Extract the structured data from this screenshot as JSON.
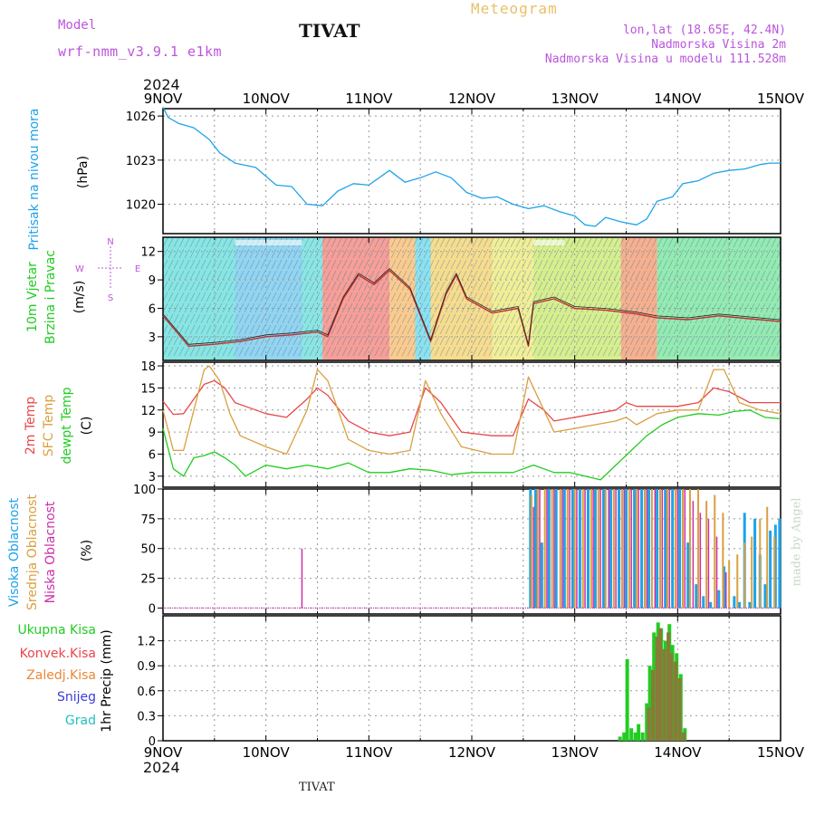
{
  "header": {
    "model_label": "Model",
    "model_name": "wrf-nmm_v3.9.1  e1km",
    "station": "TIVAT",
    "meteogram_label": "Meteogram",
    "lonlat": "lon,lat (18.65E, 42.4N)",
    "elevation": "Nadmorska Visina 2m",
    "model_elevation": "Nadmorska Visina u modelu 111.528m",
    "year_top": "2024",
    "year_bottom": "2024",
    "footer_station": "TIVAT",
    "watermark": "made by Angel"
  },
  "colors": {
    "pressure": "#1fa3e8",
    "temp2m": "#e8474a",
    "sfc_temp": "#d9a040",
    "dewpt": "#22cc22",
    "cloud_high": "#1fa3e8",
    "cloud_mid": "#d9a040",
    "cloud_low": "#cc2fa8",
    "precip_total": "#22cc22",
    "precip_conv": "#e8474a",
    "precip_frozen": "#e8883a",
    "snow": "#3c3cd8",
    "hail": "#22c0c0",
    "wind_label": "#22cc22",
    "wind_icon": "#bb55dd"
  },
  "chart_data": [
    {
      "panel": "pressure",
      "type": "line",
      "ylabel_parts": [
        "Pritisak na nivou mora",
        "(hPa)"
      ],
      "x_days": [
        "9NOV",
        "10NOV",
        "11NOV",
        "12NOV",
        "13NOV",
        "14NOV",
        "15NOV"
      ],
      "ylim": [
        1018,
        1026.5
      ],
      "yticks": [
        "1020",
        "1023",
        "1026"
      ],
      "x": [
        0,
        0.05,
        0.15,
        0.3,
        0.45,
        0.55,
        0.7,
        0.9,
        1.1,
        1.25,
        1.4,
        1.55,
        1.7,
        1.85,
        2.0,
        2.2,
        2.35,
        2.5,
        2.65,
        2.8,
        2.95,
        3.1,
        3.25,
        3.4,
        3.55,
        3.7,
        3.85,
        4.0,
        4.1,
        4.2,
        4.3,
        4.45,
        4.6,
        4.7,
        4.8,
        4.95,
        5.05,
        5.2,
        5.35,
        5.5,
        5.65,
        5.8,
        5.9,
        6.0
      ],
      "values": [
        1026.6,
        1025.9,
        1025.5,
        1025.2,
        1024.4,
        1023.5,
        1022.8,
        1022.5,
        1021.3,
        1021.2,
        1020.0,
        1019.9,
        1020.9,
        1021.4,
        1021.3,
        1022.3,
        1021.5,
        1021.8,
        1022.2,
        1021.8,
        1020.8,
        1020.4,
        1020.5,
        1020.0,
        1019.7,
        1019.9,
        1019.5,
        1019.2,
        1018.6,
        1018.5,
        1019.1,
        1018.8,
        1018.6,
        1019.0,
        1020.2,
        1020.5,
        1021.4,
        1021.6,
        1022.1,
        1022.3,
        1022.4,
        1022.7,
        1022.8,
        1022.8
      ]
    },
    {
      "panel": "wind",
      "type": "line",
      "ylabel_parts": [
        "10m Vjetar",
        "Brzina i Pravac",
        "(m/s)"
      ],
      "compass": [
        "N",
        "E",
        "S",
        "W"
      ],
      "ylim": [
        0.5,
        13.5
      ],
      "yticks": [
        "3",
        "6",
        "9",
        "12"
      ],
      "x": [
        0,
        0.25,
        0.5,
        0.75,
        1.0,
        1.25,
        1.5,
        1.6,
        1.75,
        1.9,
        2.05,
        2.2,
        2.4,
        2.6,
        2.75,
        2.85,
        2.95,
        3.2,
        3.45,
        3.55,
        3.6,
        3.8,
        4.0,
        4.3,
        4.6,
        4.8,
        5.1,
        5.4,
        5.7,
        6.0
      ],
      "values": [
        5.2,
        2.0,
        2.2,
        2.5,
        3.0,
        3.2,
        3.5,
        3.0,
        7.0,
        9.5,
        8.5,
        10.0,
        8.0,
        2.5,
        7.5,
        9.5,
        7.0,
        5.5,
        6.0,
        2.0,
        6.5,
        7.0,
        6.0,
        5.8,
        5.4,
        5.0,
        4.8,
        5.2,
        4.9,
        4.6
      ]
    },
    {
      "panel": "temperature",
      "type": "line",
      "ylabel_parts": [
        "2m Temp",
        "SFC Temp",
        "dewpt Temp",
        "(C)"
      ],
      "ylim": [
        1.5,
        18.5
      ],
      "yticks": [
        "3",
        "6",
        "9",
        "12",
        "15",
        "18"
      ],
      "series": [
        {
          "name": "2m Temp",
          "x": [
            0,
            0.1,
            0.2,
            0.3,
            0.4,
            0.5,
            0.6,
            0.7,
            0.8,
            1.0,
            1.2,
            1.4,
            1.5,
            1.6,
            1.8,
            2.0,
            2.2,
            2.4,
            2.55,
            2.7,
            2.9,
            3.2,
            3.4,
            3.55,
            3.7,
            3.8,
            4.0,
            4.2,
            4.4,
            4.5,
            4.6,
            4.8,
            5.0,
            5.2,
            5.35,
            5.5,
            5.7,
            5.9,
            6.0
          ],
          "values": [
            13.2,
            11.4,
            11.5,
            13.5,
            15.5,
            16.0,
            15.0,
            13.0,
            12.5,
            11.5,
            11.0,
            13.5,
            15.0,
            14.0,
            10.5,
            9.0,
            8.5,
            9.0,
            15.0,
            13.0,
            9.0,
            8.5,
            8.5,
            13.5,
            12.0,
            10.5,
            11.0,
            11.5,
            12.0,
            13.0,
            12.5,
            12.5,
            12.5,
            13.0,
            15.0,
            14.5,
            13.0,
            13.0,
            13.0
          ]
        },
        {
          "name": "SFC Temp",
          "x": [
            0,
            0.1,
            0.2,
            0.3,
            0.4,
            0.45,
            0.55,
            0.65,
            0.75,
            1.0,
            1.2,
            1.4,
            1.5,
            1.6,
            1.8,
            2.0,
            2.2,
            2.4,
            2.55,
            2.7,
            2.9,
            3.2,
            3.4,
            3.55,
            3.7,
            3.8,
            4.0,
            4.2,
            4.4,
            4.5,
            4.6,
            4.8,
            5.0,
            5.2,
            5.35,
            5.45,
            5.6,
            5.8,
            6.0
          ],
          "values": [
            12.0,
            6.5,
            6.5,
            12.0,
            17.5,
            18.0,
            16.0,
            11.5,
            8.5,
            7.0,
            6.0,
            12.0,
            17.5,
            16.0,
            8.0,
            6.5,
            6.0,
            6.5,
            16.0,
            11.5,
            7.0,
            6.0,
            6.0,
            16.5,
            12.0,
            9.0,
            9.5,
            10.0,
            10.5,
            11.0,
            10.0,
            11.5,
            12.0,
            12.0,
            17.5,
            17.5,
            13.0,
            12.0,
            11.5
          ]
        },
        {
          "name": "dewpt Temp",
          "x": [
            0,
            0.1,
            0.2,
            0.3,
            0.4,
            0.5,
            0.6,
            0.7,
            0.8,
            1.0,
            1.2,
            1.4,
            1.6,
            1.8,
            2.0,
            2.2,
            2.4,
            2.6,
            2.8,
            3.0,
            3.2,
            3.4,
            3.6,
            3.8,
            3.95,
            4.1,
            4.25,
            4.4,
            4.55,
            4.7,
            4.85,
            5.0,
            5.2,
            5.4,
            5.55,
            5.7,
            5.85,
            6.0
          ],
          "values": [
            9.5,
            4.0,
            3.0,
            5.5,
            5.8,
            6.3,
            5.5,
            4.5,
            3.0,
            4.5,
            4.0,
            4.5,
            4.0,
            4.8,
            3.5,
            3.5,
            4.0,
            3.8,
            3.2,
            3.5,
            3.5,
            3.5,
            4.5,
            3.5,
            3.5,
            3.0,
            2.5,
            4.5,
            6.5,
            8.5,
            10.0,
            11.0,
            11.5,
            11.3,
            11.8,
            12.0,
            11.0,
            10.8
          ]
        }
      ]
    },
    {
      "panel": "clouds",
      "type": "bar",
      "ylabel_parts": [
        "Visoka Oblacnost",
        "Srednja Oblacnost",
        "Niska Oblacnost",
        "(%)"
      ],
      "ylim": [
        -5,
        100
      ],
      "yticks": [
        "0",
        "25",
        "50",
        "75",
        "100"
      ],
      "series": [
        {
          "name": "Visoka Oblacnost",
          "x": [
            3.57,
            3.62,
            3.68,
            3.75,
            3.82,
            3.9,
            3.98,
            4.05,
            4.13,
            4.2,
            4.28,
            4.35,
            4.43,
            4.5,
            4.58,
            4.65,
            4.72,
            4.8,
            4.88,
            4.95,
            5.02,
            5.1,
            5.18,
            5.25,
            5.32,
            5.4,
            5.45,
            5.55,
            5.6,
            5.65,
            5.7,
            5.75,
            5.8,
            5.85,
            5.9,
            5.95,
            5.99
          ],
          "values": [
            100,
            100,
            55,
            100,
            100,
            100,
            100,
            100,
            100,
            100,
            100,
            100,
            100,
            100,
            100,
            100,
            100,
            100,
            100,
            100,
            100,
            55,
            20,
            10,
            5,
            15,
            35,
            10,
            5,
            80,
            5,
            75,
            45,
            20,
            65,
            70,
            75
          ]
        },
        {
          "name": "Srednja Oblacnost",
          "x": [
            3.58,
            3.64,
            3.71,
            3.78,
            3.86,
            3.93,
            4.0,
            4.08,
            4.16,
            4.23,
            4.3,
            4.38,
            4.46,
            4.53,
            4.6,
            4.68,
            4.75,
            4.83,
            4.9,
            4.98,
            5.05,
            5.12,
            5.2,
            5.28,
            5.36,
            5.44,
            5.5,
            5.58,
            5.65,
            5.72,
            5.8,
            5.87,
            5.94
          ],
          "values": [
            95,
            100,
            100,
            100,
            100,
            100,
            100,
            100,
            100,
            100,
            100,
            100,
            100,
            100,
            100,
            100,
            100,
            100,
            100,
            100,
            100,
            100,
            100,
            90,
            95,
            80,
            40,
            45,
            55,
            60,
            75,
            85,
            60
          ]
        },
        {
          "name": "Niska Oblacnost",
          "x": [
            1.35,
            3.6,
            3.66,
            3.73,
            3.8,
            3.88,
            3.95,
            4.02,
            4.1,
            4.18,
            4.25,
            4.33,
            4.4,
            4.48,
            4.55,
            4.62,
            4.7,
            4.78,
            4.85,
            4.92,
            5.0,
            5.07,
            5.15,
            5.22,
            5.3,
            5.38,
            5.47
          ],
          "values": [
            50,
            85,
            100,
            100,
            100,
            100,
            100,
            100,
            100,
            100,
            100,
            100,
            100,
            100,
            100,
            100,
            100,
            100,
            100,
            100,
            100,
            100,
            90,
            80,
            75,
            60,
            30
          ]
        }
      ]
    },
    {
      "panel": "precip",
      "type": "bar",
      "ylabel_parts": [
        "1hr Precip (mm)"
      ],
      "legend": [
        "Ukupna Kisa",
        "Konvek.Kisa",
        "Zaledj.Kisa",
        "Snijeg",
        "Grad"
      ],
      "ylim": [
        0,
        1.5
      ],
      "yticks": [
        "0",
        "0.3",
        "0.6",
        "0.9",
        "1.2"
      ],
      "x_days": [
        "9NOV",
        "10NOV",
        "11NOV",
        "12NOV",
        "13NOV",
        "14NOV",
        "15NOV"
      ],
      "series": [
        {
          "name": "Ukupna Kisa",
          "x": [
            4.44,
            4.48,
            4.51,
            4.55,
            4.59,
            4.62,
            4.66,
            4.7,
            4.73,
            4.77,
            4.81,
            4.84,
            4.88,
            4.92,
            4.95,
            4.99,
            5.03,
            5.07
          ],
          "values": [
            0.05,
            0.1,
            0.98,
            0.15,
            0.1,
            0.2,
            0.1,
            0.45,
            0.9,
            1.3,
            1.42,
            1.35,
            1.2,
            1.4,
            1.15,
            1.05,
            0.8,
            0.15
          ]
        },
        {
          "name": "Konvek.Kisa",
          "x": [
            4.72,
            4.76,
            4.8,
            4.83,
            4.87,
            4.91,
            4.94,
            4.98,
            5.02,
            5.06
          ],
          "values": [
            0.4,
            0.85,
            1.25,
            1.35,
            1.1,
            1.3,
            1.05,
            0.95,
            0.75,
            0.1
          ]
        }
      ]
    }
  ]
}
